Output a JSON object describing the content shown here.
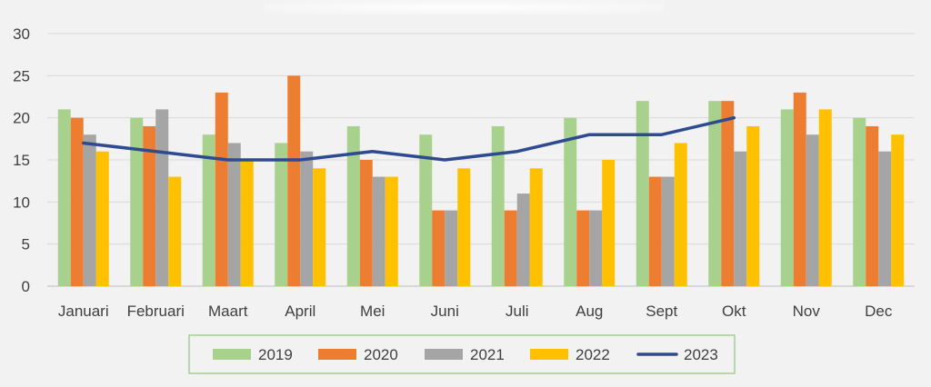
{
  "chart_data": {
    "type": "bar",
    "categories": [
      "Januari",
      "Februari",
      "Maart",
      "April",
      "Mei",
      "Juni",
      "Juli",
      "Aug",
      "Sept",
      "Okt",
      "Nov",
      "Dec"
    ],
    "series": [
      {
        "name": "2019",
        "type": "bar",
        "color": "#a9d18e",
        "values": [
          21,
          20,
          18,
          17,
          19,
          18,
          19,
          20,
          22,
          22,
          21,
          20
        ]
      },
      {
        "name": "2020",
        "type": "bar",
        "color": "#ed7d31",
        "values": [
          20,
          19,
          23,
          25,
          15,
          9,
          9,
          9,
          13,
          22,
          23,
          19
        ]
      },
      {
        "name": "2021",
        "type": "bar",
        "color": "#a5a5a5",
        "values": [
          18,
          21,
          17,
          16,
          13,
          9,
          11,
          9,
          13,
          16,
          18,
          16
        ]
      },
      {
        "name": "2022",
        "type": "bar",
        "color": "#ffc000",
        "values": [
          16,
          13,
          15,
          14,
          13,
          14,
          14,
          15,
          17,
          19,
          21,
          18
        ]
      },
      {
        "name": "2023",
        "type": "line",
        "color": "#2f4b8f",
        "values": [
          17,
          16,
          15,
          15,
          16,
          15,
          16,
          18,
          18,
          20,
          null,
          null
        ]
      }
    ],
    "yticks": [
      "0",
      "5",
      "10",
      "15",
      "20",
      "25",
      "30"
    ],
    "ylim": [
      0,
      30
    ],
    "grid": true,
    "legend_position": "bottom",
    "title": "",
    "xlabel": "",
    "ylabel": ""
  }
}
